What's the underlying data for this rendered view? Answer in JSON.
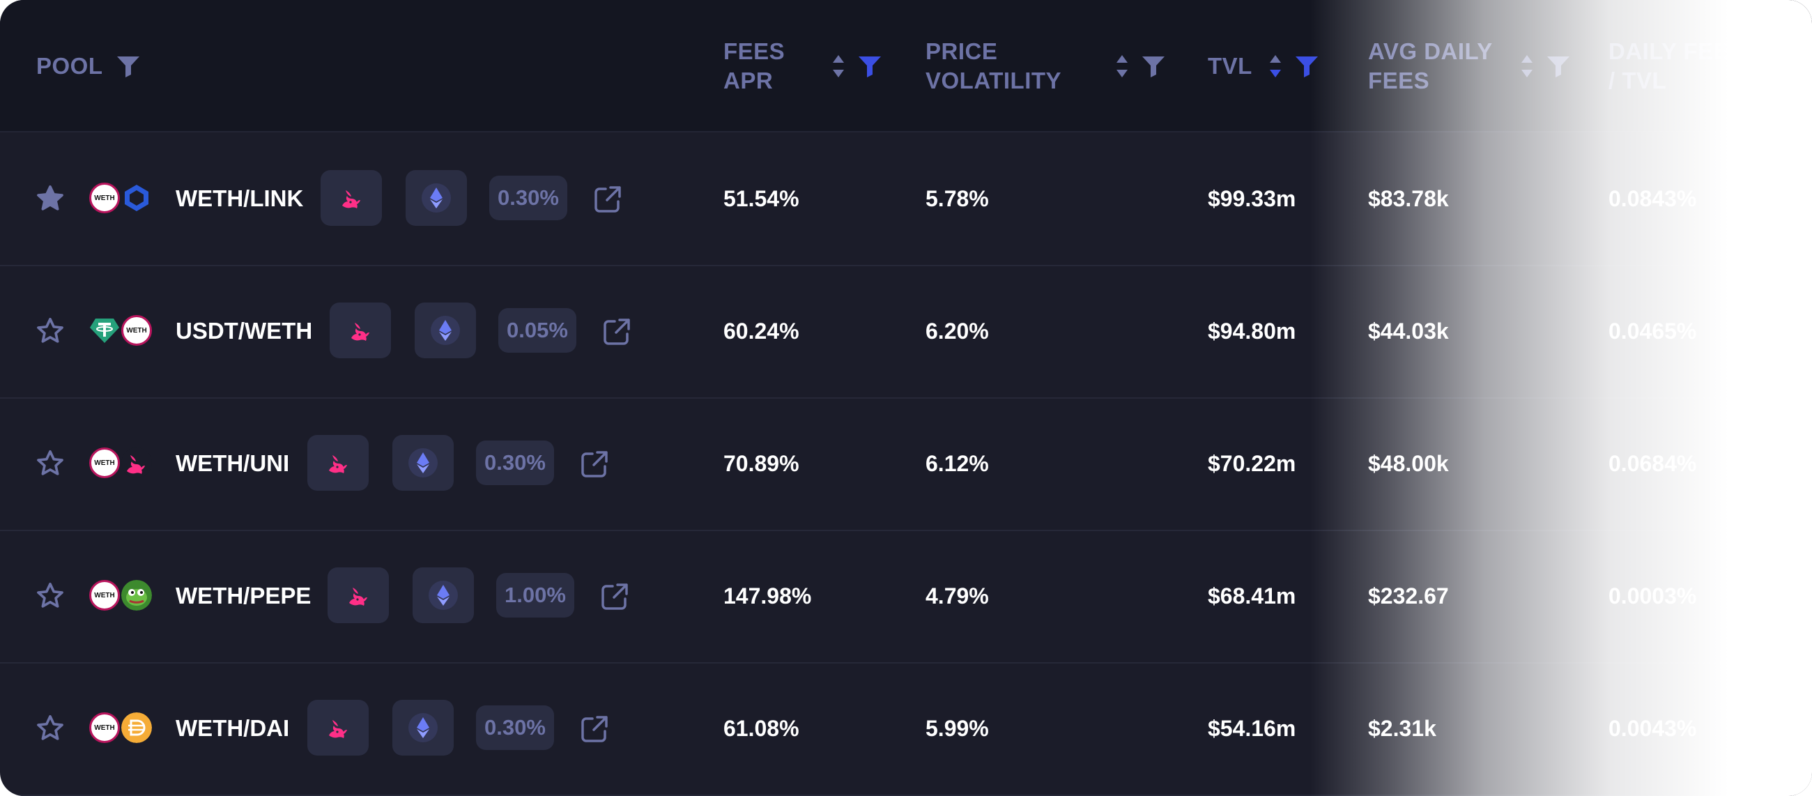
{
  "columns": {
    "pool": "POOL",
    "fees_apr": "FEES\nAPR",
    "price_volatility": "PRICE\nVOLATILITY",
    "tvl": "TVL",
    "avg_daily_fees": "AVG DAILY\nFEES",
    "daily_fees_tvl": "DAILY FEES\n/ TVL"
  },
  "colors": {
    "background": "#1b1c29",
    "header": "#141621",
    "muted": "#6d73a6",
    "accent": "#3b4fe4",
    "uniswap_pink": "#ff2f87",
    "eth_blue": "#6b7cf5"
  },
  "rows": [
    {
      "pair": "WETH/LINK",
      "token1": "WETH",
      "token2": "LINK",
      "fee": "0.30%",
      "fees_apr": "51.54%",
      "volatility": "5.78%",
      "tvl": "$99.33m",
      "avg_daily_fees": "$83.78k",
      "daily_fees_tvl": "0.0843%",
      "favorited": true
    },
    {
      "pair": "USDT/WETH",
      "token1": "USDT",
      "token2": "WETH",
      "fee": "0.05%",
      "fees_apr": "60.24%",
      "volatility": "6.20%",
      "tvl": "$94.80m",
      "avg_daily_fees": "$44.03k",
      "daily_fees_tvl": "0.0465%",
      "favorited": false
    },
    {
      "pair": "WETH/UNI",
      "token1": "WETH",
      "token2": "UNI",
      "fee": "0.30%",
      "fees_apr": "70.89%",
      "volatility": "6.12%",
      "tvl": "$70.22m",
      "avg_daily_fees": "$48.00k",
      "daily_fees_tvl": "0.0684%",
      "favorited": false
    },
    {
      "pair": "WETH/PEPE",
      "token1": "WETH",
      "token2": "PEPE",
      "fee": "1.00%",
      "fees_apr": "147.98%",
      "volatility": "4.79%",
      "tvl": "$68.41m",
      "avg_daily_fees": "$232.67",
      "daily_fees_tvl": "0.0003%",
      "favorited": false
    },
    {
      "pair": "WETH/DAI",
      "token1": "WETH",
      "token2": "DAI",
      "fee": "0.30%",
      "fees_apr": "61.08%",
      "volatility": "5.99%",
      "tvl": "$54.16m",
      "avg_daily_fees": "$2.31k",
      "daily_fees_tvl": "0.0043%",
      "favorited": false
    }
  ]
}
